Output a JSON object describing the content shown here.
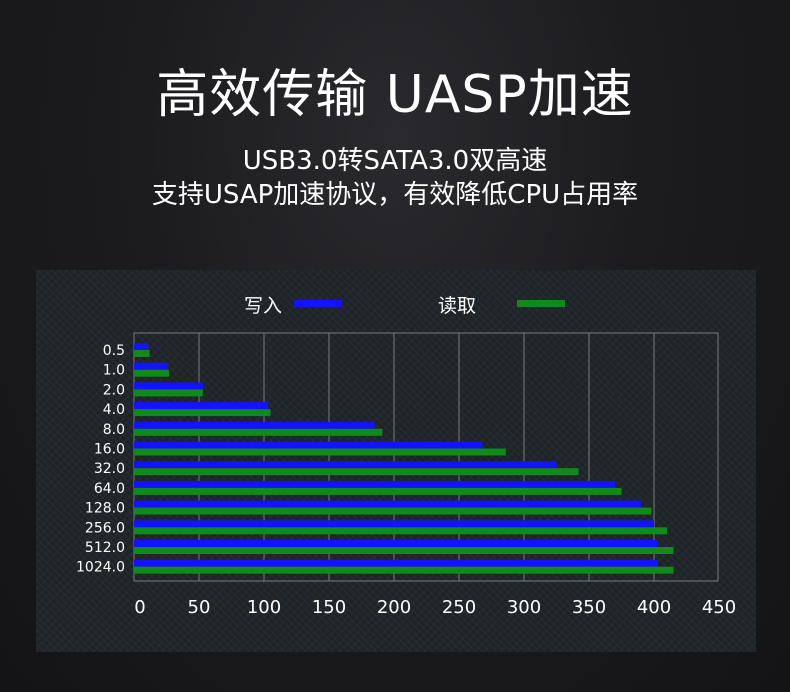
{
  "header": {
    "title": "高效传输 UASP加速",
    "subtitle_line1": "USB3.0转SATA3.0双高速",
    "subtitle_line2": "支持USAP加速协议，有效降低CPU占用率"
  },
  "colors": {
    "write": "#1313ff",
    "read": "#0f8a1b",
    "panel_bg": "#1d2326",
    "grid": "#7a7a7a",
    "text": "#ffffff"
  },
  "chart_data": {
    "type": "bar",
    "orientation": "horizontal",
    "categories": [
      "0.5",
      "1.0",
      "2.0",
      "4.0",
      "8.0",
      "16.0",
      "32.0",
      "64.0",
      "128.0",
      "256.0",
      "512.0",
      "1024.0"
    ],
    "series": [
      {
        "name": "写入",
        "color": "#1313ff",
        "values": [
          11,
          26,
          53,
          103,
          185,
          268,
          325,
          370,
          390,
          400,
          403,
          403
        ]
      },
      {
        "name": "读取",
        "color": "#0f8a1b",
        "values": [
          12,
          27,
          53,
          105,
          191,
          286,
          342,
          375,
          398,
          410,
          415,
          415
        ]
      }
    ],
    "xticks": [
      "0",
      "50",
      "100",
      "150",
      "200",
      "250",
      "300",
      "350",
      "400",
      "450"
    ],
    "xlim": [
      0,
      450
    ],
    "grid": true,
    "legend": "top"
  }
}
